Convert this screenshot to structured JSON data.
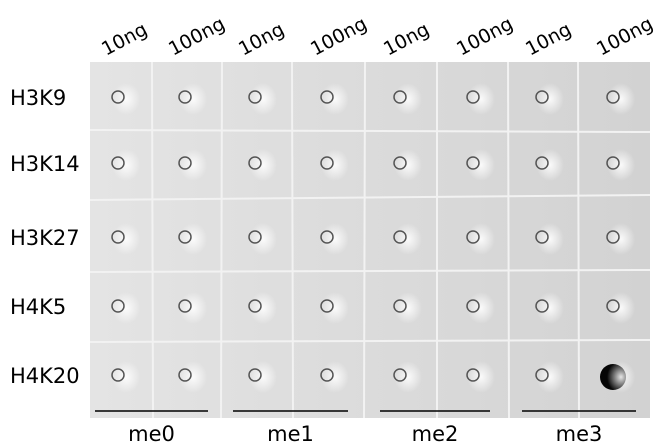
{
  "columns": [
    "10ng",
    "100ng",
    "10ng",
    "100ng",
    "10ng",
    "100ng",
    "10ng",
    "100ng"
  ],
  "rows": [
    "H3K9",
    "H3K14",
    "H3K27",
    "H4K5",
    "H4K20"
  ],
  "groups": [
    "me0",
    "me1",
    "me2",
    "me3"
  ]
}
